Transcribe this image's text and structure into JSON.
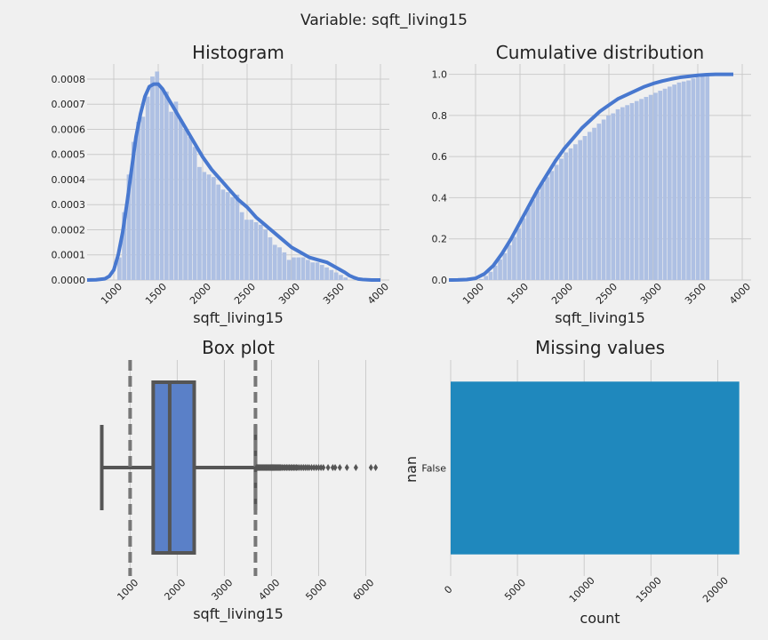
{
  "suptitle": "Variable: sqft_living15",
  "colors": {
    "bg": "#f0f0f0",
    "hist": "#aec0e3",
    "kde": "#4878cf",
    "box": "#5a80c8",
    "box_edge": "#555555",
    "missing": "#1f88bd",
    "grid": "#cbcbcb"
  },
  "chart_data": [
    {
      "type": "bar",
      "title": "Histogram",
      "xlabel": "sqft_living15",
      "ylabel": "",
      "xlim": [
        700,
        4100
      ],
      "ylim": [
        0,
        0.00086
      ],
      "xticks": [
        "1000",
        "1500",
        "2000",
        "2500",
        "3000",
        "3500",
        "4000"
      ],
      "yticks": [
        "0.0000",
        "0.0001",
        "0.0002",
        "0.0003",
        "0.0004",
        "0.0005",
        "0.0006",
        "0.0007",
        "0.0008"
      ],
      "bin_width": 53,
      "bins_left": [
        1040,
        1093,
        1146,
        1199,
        1252,
        1305,
        1358,
        1411,
        1464,
        1517,
        1570,
        1623,
        1676,
        1729,
        1782,
        1835,
        1888,
        1941,
        1994,
        2047,
        2100,
        2153,
        2206,
        2259,
        2312,
        2365,
        2418,
        2471,
        2524,
        2577,
        2630,
        2683,
        2736,
        2789,
        2842,
        2895,
        2948,
        3001,
        3054,
        3107,
        3160,
        3213,
        3266,
        3319,
        3372,
        3425,
        3478,
        3531,
        3584
      ],
      "values": [
        9e-05,
        0.00027,
        0.00042,
        0.00055,
        0.00063,
        0.00065,
        0.00073,
        0.00081,
        0.00083,
        0.00076,
        0.00075,
        0.00067,
        0.00071,
        0.00064,
        0.0006,
        0.00057,
        0.00053,
        0.00045,
        0.00043,
        0.00042,
        0.00041,
        0.00038,
        0.00036,
        0.00035,
        0.00033,
        0.00034,
        0.00027,
        0.00024,
        0.00024,
        0.00023,
        0.00022,
        0.0002,
        0.00017,
        0.00014,
        0.00013,
        0.00011,
        8e-05,
        9e-05,
        9e-05,
        9e-05,
        8e-05,
        7e-05,
        7e-05,
        6e-05,
        5e-05,
        4e-05,
        3e-05,
        2e-05,
        1e-05
      ],
      "kde": {
        "x": [
          700,
          800,
          900,
          950,
          1000,
          1050,
          1100,
          1150,
          1200,
          1250,
          1300,
          1350,
          1400,
          1450,
          1500,
          1550,
          1600,
          1650,
          1700,
          1750,
          1800,
          1900,
          2000,
          2100,
          2200,
          2300,
          2400,
          2500,
          2600,
          2700,
          2800,
          2900,
          3000,
          3100,
          3200,
          3300,
          3400,
          3500,
          3600,
          3650,
          3700,
          3750,
          3800,
          3900,
          4000
        ],
        "y": [
          0,
          1e-06,
          5e-06,
          1.5e-05,
          4e-05,
          0.0001,
          0.00019,
          0.00031,
          0.00044,
          0.00057,
          0.00066,
          0.00073,
          0.00077,
          0.00078,
          0.00078,
          0.00076,
          0.00073,
          0.0007,
          0.00067,
          0.00064,
          0.00061,
          0.00055,
          0.00049,
          0.00044,
          0.0004,
          0.00036,
          0.00032,
          0.00029,
          0.00025,
          0.00022,
          0.00019,
          0.00016,
          0.00013,
          0.00011,
          9e-05,
          8e-05,
          7e-05,
          5e-05,
          3e-05,
          1.8e-05,
          1e-05,
          4e-06,
          2e-06,
          0,
          0
        ]
      }
    },
    {
      "type": "bar",
      "title": "Cumulative distribution",
      "xlabel": "sqft_living15",
      "ylabel": "",
      "xlim": [
        700,
        4100
      ],
      "ylim": [
        0,
        1.05
      ],
      "xticks": [
        "1000",
        "1500",
        "2000",
        "2500",
        "3000",
        "3500",
        "4000"
      ],
      "yticks": [
        "0.0",
        "0.2",
        "0.4",
        "0.6",
        "0.8",
        "1.0"
      ],
      "bin_width": 53,
      "bins_left": [
        1040,
        1093,
        1146,
        1199,
        1252,
        1305,
        1358,
        1411,
        1464,
        1517,
        1570,
        1623,
        1676,
        1729,
        1782,
        1835,
        1888,
        1941,
        1994,
        2047,
        2100,
        2153,
        2206,
        2259,
        2312,
        2365,
        2418,
        2471,
        2524,
        2577,
        2630,
        2683,
        2736,
        2789,
        2842,
        2895,
        2948,
        3001,
        3054,
        3107,
        3160,
        3213,
        3266,
        3319,
        3372,
        3425,
        3478,
        3531,
        3584
      ],
      "values": [
        0.005,
        0.02,
        0.04,
        0.07,
        0.1,
        0.13,
        0.17,
        0.21,
        0.25,
        0.3,
        0.35,
        0.39,
        0.43,
        0.47,
        0.5,
        0.53,
        0.56,
        0.59,
        0.62,
        0.64,
        0.66,
        0.68,
        0.7,
        0.72,
        0.74,
        0.76,
        0.78,
        0.8,
        0.81,
        0.83,
        0.84,
        0.85,
        0.86,
        0.87,
        0.88,
        0.89,
        0.9,
        0.91,
        0.92,
        0.93,
        0.94,
        0.95,
        0.96,
        0.965,
        0.97,
        0.98,
        0.985,
        0.99,
        1.0
      ],
      "cdf": {
        "x": [
          700,
          800,
          900,
          1000,
          1100,
          1200,
          1300,
          1400,
          1500,
          1600,
          1700,
          1800,
          1900,
          2000,
          2100,
          2200,
          2300,
          2400,
          2500,
          2600,
          2700,
          2800,
          2900,
          3000,
          3100,
          3200,
          3300,
          3400,
          3500,
          3600,
          3700,
          3800,
          3900
        ],
        "y": [
          0,
          0.0005,
          0.002,
          0.008,
          0.03,
          0.07,
          0.13,
          0.2,
          0.28,
          0.36,
          0.44,
          0.51,
          0.58,
          0.64,
          0.69,
          0.74,
          0.78,
          0.82,
          0.85,
          0.88,
          0.9,
          0.92,
          0.94,
          0.955,
          0.967,
          0.977,
          0.985,
          0.99,
          0.995,
          0.998,
          1.0,
          1.0,
          1.0
        ]
      }
    },
    {
      "type": "box",
      "title": "Box plot",
      "xlabel": "sqft_living15",
      "xlim": [
        50,
        6500
      ],
      "xticks": [
        "1000",
        "2000",
        "3000",
        "4000",
        "5000",
        "6000"
      ],
      "whisker_low": 399,
      "q1": 1490,
      "median": 1840,
      "q3": 2360,
      "whisker_high": 3660,
      "ref_lines": [
        1000,
        3660
      ],
      "outliers": [
        3680,
        3700,
        3720,
        3740,
        3760,
        3780,
        3800,
        3820,
        3840,
        3860,
        3880,
        3900,
        3920,
        3940,
        3960,
        3980,
        4000,
        4020,
        4040,
        4060,
        4080,
        4100,
        4120,
        4140,
        4160,
        4180,
        4200,
        4230,
        4260,
        4290,
        4320,
        4350,
        4380,
        4410,
        4440,
        4470,
        4500,
        4530,
        4560,
        4600,
        4640,
        4680,
        4720,
        4760,
        4800,
        4850,
        4900,
        4950,
        5000,
        5050,
        5100,
        5200,
        5300,
        5350,
        5450,
        5600,
        5790,
        6110,
        6210
      ]
    },
    {
      "type": "bar",
      "orientation": "horizontal",
      "title": "Missing values",
      "xlabel": "count",
      "ylabel": "nan",
      "xlim": [
        0,
        22500
      ],
      "xticks": [
        "0",
        "5000",
        "10000",
        "15000",
        "20000"
      ],
      "categories": [
        "False"
      ],
      "values": [
        21613
      ]
    }
  ]
}
